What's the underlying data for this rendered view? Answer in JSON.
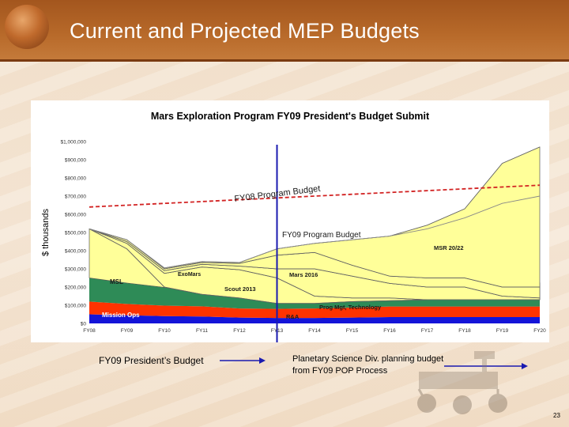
{
  "slide": {
    "title": "Current and Projected MEP Budgets",
    "page_number": "23",
    "caption_left": "FY09 President’s Budget",
    "caption_right_line1": "Planetary Science Div. planning budget",
    "caption_right_line2": "from FY09 POP Process"
  },
  "colors": {
    "header": "#b0612a",
    "mission_ops": "#1414d8",
    "rnd": "#ff3300",
    "prog_mgt": "#2e8b57",
    "missions_fill": "#ffff99",
    "program_budget_line": "#d22222",
    "divider_line": "#1a1ab0"
  },
  "chart_data": {
    "type": "area",
    "title": "Mars Exploration Program FY09 President's Budget Submit",
    "ylabel": "$ thousands",
    "xlabel": "",
    "ylim": [
      0,
      1000000
    ],
    "y_ticks": [
      {
        "value": 0,
        "label": "$0"
      },
      {
        "value": 100000,
        "label": "$100,000"
      },
      {
        "value": 200000,
        "label": "$200,000"
      },
      {
        "value": 300000,
        "label": "$300,000"
      },
      {
        "value": 400000,
        "label": "$400,000"
      },
      {
        "value": 500000,
        "label": "$500,000"
      },
      {
        "value": 600000,
        "label": "$600,000"
      },
      {
        "value": 700000,
        "label": "$700,000"
      },
      {
        "value": 800000,
        "label": "$800,000"
      },
      {
        "value": 900000,
        "label": "$900,000"
      },
      {
        "value": 1000000,
        "label": "$1,000,000"
      }
    ],
    "categories": [
      "FY08",
      "FY09",
      "FY10",
      "FY11",
      "FY12",
      "FY13",
      "FY14",
      "FY15",
      "FY16",
      "FY17",
      "FY18",
      "FY19",
      "FY20"
    ],
    "divider_at": "FY13",
    "series": [
      {
        "name": "Mission Ops",
        "label": "Mission Ops",
        "color": "#1414d8",
        "values": [
          50000,
          45000,
          40000,
          38000,
          32000,
          30000,
          30000,
          32000,
          35000,
          35000,
          35000,
          35000,
          35000
        ]
      },
      {
        "name": "R&A",
        "label": "R&A",
        "color": "#ff3300",
        "values": [
          70000,
          62000,
          58000,
          56000,
          50000,
          50000,
          52000,
          55000,
          58000,
          58000,
          58000,
          58000,
          58000
        ]
      },
      {
        "name": "Prog Mgt, Technology",
        "label": "Prog Mgt, Technology",
        "color": "#2e8b57",
        "values": [
          130000,
          115000,
          100000,
          96000,
          82000,
          80000,
          110000,
          120000,
          125000,
          130000,
          130000,
          130000,
          130000
        ]
      },
      {
        "name": "MSL",
        "label": "MSL",
        "color": "#ffff99",
        "values": [
          520000,
          410000,
          200000,
          160000,
          140000,
          110000,
          110000,
          120000,
          125000,
          130000,
          130000,
          130000,
          130000
        ]
      },
      {
        "name": "Scout 2013",
        "label": "Scout 2013",
        "color": "#ffff99",
        "values": [
          520000,
          440000,
          275000,
          310000,
          295000,
          250000,
          150000,
          140000,
          140000,
          130000,
          130000,
          130000,
          130000
        ]
      },
      {
        "name": "ExoMars",
        "label": "ExoMars",
        "color": "#ffff99",
        "values": [
          520000,
          450000,
          290000,
          325000,
          315000,
          300000,
          300000,
          260000,
          220000,
          200000,
          200000,
          150000,
          140000
        ]
      },
      {
        "name": "Mars 2016",
        "label": "Mars 2016",
        "color": "#ffff99",
        "values": [
          520000,
          460000,
          300000,
          335000,
          330000,
          375000,
          390000,
          320000,
          260000,
          250000,
          250000,
          200000,
          200000
        ]
      },
      {
        "name": "MSR 20/22",
        "label": "MSR 20/22",
        "color": "#ffff99",
        "values": [
          520000,
          460000,
          305000,
          340000,
          335000,
          410000,
          440000,
          460000,
          480000,
          540000,
          630000,
          880000,
          970000
        ]
      }
    ],
    "reference_lines": [
      {
        "name": "FY08 Program Budget",
        "label": "FY08 Program Budget",
        "style": "dashed",
        "color": "#d22222",
        "values": [
          640000,
          650000,
          660000,
          670000,
          680000,
          690000,
          700000,
          710000,
          720000,
          730000,
          740000,
          750000,
          760000
        ]
      },
      {
        "name": "FY09 Program Budget",
        "label": "FY09 Program Budget",
        "style": "solid",
        "color": "#888888",
        "values": [
          520000,
          460000,
          305000,
          340000,
          335000,
          410000,
          440000,
          460000,
          480000,
          520000,
          580000,
          660000,
          700000
        ]
      }
    ]
  }
}
